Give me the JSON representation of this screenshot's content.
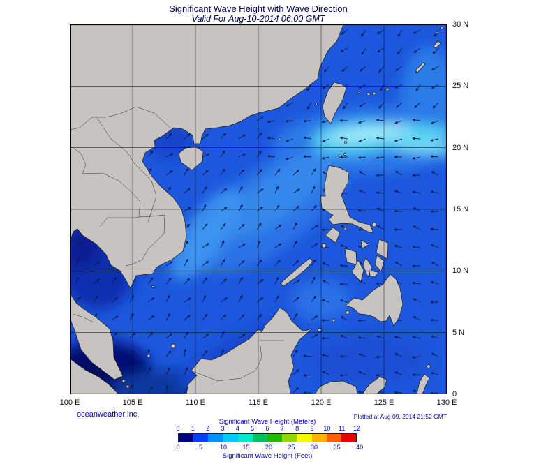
{
  "header": {
    "title": "Significant Wave Height with Wave Direction",
    "subtitle": "Valid For Aug-10-2014 06:00 GMT"
  },
  "footer": {
    "credit": "oceanweather inc.",
    "plotted": "Plotted at Aug 09, 2014 21:52 GMT"
  },
  "axes": {
    "x_ticks": [
      "100 E",
      "105 E",
      "110 E",
      "115 E",
      "120 E",
      "125 E",
      "130 E"
    ],
    "y_ticks": [
      "30 N",
      "25 N",
      "20 N",
      "15 N",
      "10 N",
      "5 N",
      "0"
    ]
  },
  "legend": {
    "meters_title": "Significant Wave Height (Meters)",
    "feet_title": "Significant Wave Height (Feet)",
    "meters_ticks": [
      "0",
      "1",
      "2",
      "3",
      "4",
      "5",
      "6",
      "7",
      "8",
      "9",
      "10",
      "11",
      "12"
    ],
    "feet_ticks": [
      "0",
      "5",
      "10",
      "15",
      "20",
      "25",
      "30",
      "35",
      "40"
    ],
    "colors": [
      "#000080",
      "#0040ff",
      "#0090ff",
      "#00c8ff",
      "#00e8d0",
      "#00c060",
      "#20b800",
      "#90d800",
      "#f8f800",
      "#ffb000",
      "#ff6000",
      "#e80000"
    ]
  },
  "map": {
    "extent": {
      "lon_min": 100,
      "lon_max": 130,
      "lat_min": 0,
      "lat_max": 30
    },
    "grid_interval_deg": 5,
    "land_color": "#c6c3c0",
    "ocean_color": "#1c57dd",
    "arrow_color": "#0a1c55"
  }
}
